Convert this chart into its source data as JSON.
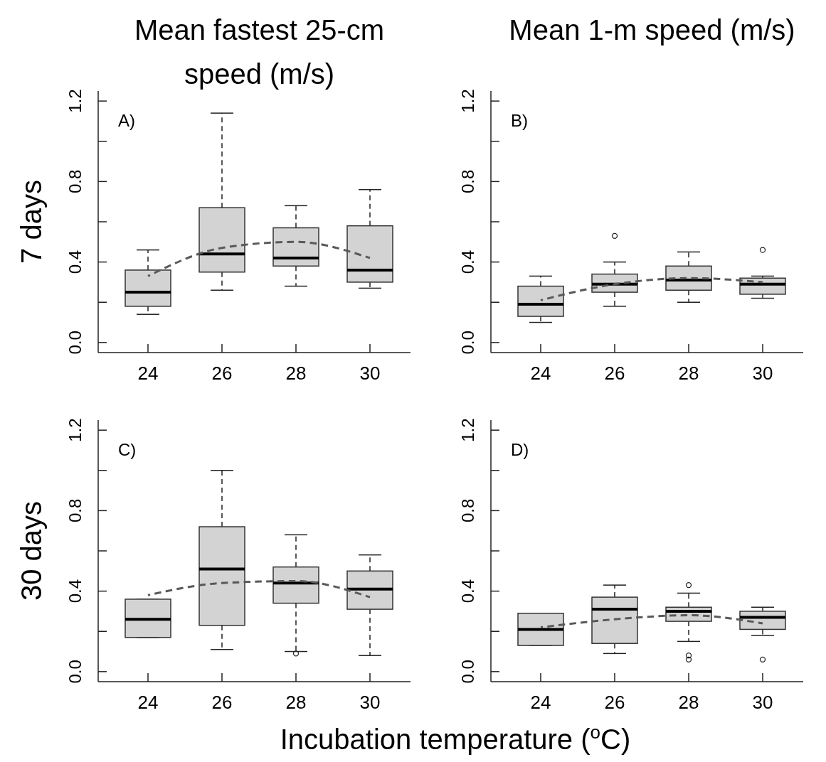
{
  "chart_data": [
    {
      "type": "box",
      "title": "Mean fastest 25-cm speed (m/s)",
      "ylabel": "7 days",
      "annotations": [
        "A)"
      ],
      "categories": [
        "24",
        "26",
        "28",
        "30"
      ],
      "ylim": [
        -0.05,
        1.25
      ],
      "yticks": [
        {
          "value": 0,
          "label": "0.0"
        },
        {
          "value": 0.2,
          "label": null
        },
        {
          "value": 0.4,
          "label": "0.4"
        },
        {
          "value": 0.6,
          "label": null
        },
        {
          "value": 0.8,
          "label": "0.8"
        },
        {
          "value": 1.0,
          "label": null
        },
        {
          "value": 1.2,
          "label": "1.2"
        }
      ],
      "series": [
        {
          "color": "#d3d3d3",
          "boxes": [
            {
              "low": 0.14,
              "q1": 0.18,
              "median": 0.25,
              "q3": 0.36,
              "high": 0.46
            },
            {
              "low": 0.26,
              "q1": 0.35,
              "median": 0.44,
              "q3": 0.67,
              "high": 1.14
            },
            {
              "low": 0.28,
              "q1": 0.38,
              "median": 0.42,
              "q3": 0.57,
              "high": 0.68
            },
            {
              "low": 0.27,
              "q1": 0.3,
              "median": 0.36,
              "q3": 0.58,
              "high": 0.76
            }
          ]
        },
        {
          "type": "line",
          "color": "#595959",
          "line_style": "dashed",
          "values": [
            0.33,
            0.47,
            0.5,
            0.42
          ]
        }
      ]
    },
    {
      "type": "box",
      "title": "Mean 1-m speed (m/s)",
      "annotations": [
        "B)"
      ],
      "categories": [
        "24",
        "26",
        "28",
        "30"
      ],
      "ylim": [
        -0.05,
        1.25
      ],
      "yticks": [
        {
          "value": 0,
          "label": "0.0"
        },
        {
          "value": 0.2,
          "label": null
        },
        {
          "value": 0.4,
          "label": "0.4"
        },
        {
          "value": 0.6,
          "label": null
        },
        {
          "value": 0.8,
          "label": "0.8"
        },
        {
          "value": 1.0,
          "label": null
        },
        {
          "value": 1.2,
          "label": "1.2"
        }
      ],
      "series": [
        {
          "color": "#d3d3d3",
          "boxes": [
            {
              "low": 0.1,
              "q1": 0.13,
              "median": 0.19,
              "q3": 0.28,
              "high": 0.33
            },
            {
              "low": 0.18,
              "q1": 0.25,
              "median": 0.29,
              "q3": 0.34,
              "high": 0.4,
              "outliers": [
                0.53
              ]
            },
            {
              "low": 0.2,
              "q1": 0.26,
              "median": 0.31,
              "q3": 0.38,
              "high": 0.45
            },
            {
              "low": 0.22,
              "q1": 0.24,
              "median": 0.29,
              "q3": 0.32,
              "high": 0.33,
              "outliers": [
                0.46
              ]
            }
          ]
        },
        {
          "type": "line",
          "color": "#595959",
          "line_style": "dashed",
          "values": [
            0.21,
            0.29,
            0.32,
            0.3
          ]
        }
      ]
    },
    {
      "type": "box",
      "ylabel": "30 days",
      "xlabel": "Incubation temperature ($^{o}$C)",
      "annotations": [
        "C)"
      ],
      "categories": [
        "24",
        "26",
        "28",
        "30"
      ],
      "ylim": [
        -0.05,
        1.25
      ],
      "yticks": [
        {
          "value": 0,
          "label": "0.0"
        },
        {
          "value": 0.2,
          "label": null
        },
        {
          "value": 0.4,
          "label": "0.4"
        },
        {
          "value": 0.6,
          "label": null
        },
        {
          "value": 0.8,
          "label": "0.8"
        },
        {
          "value": 1.0,
          "label": null
        },
        {
          "value": 1.2,
          "label": "1.2"
        }
      ],
      "series": [
        {
          "color": "#d3d3d3",
          "boxes": [
            {
              "low": 0.17,
              "q1": 0.17,
              "median": 0.26,
              "q3": 0.36,
              "high": 0.36
            },
            {
              "low": 0.11,
              "q1": 0.23,
              "median": 0.51,
              "q3": 0.72,
              "high": 1.0
            },
            {
              "low": 0.1,
              "q1": 0.34,
              "median": 0.44,
              "q3": 0.52,
              "high": 0.68,
              "outliers": [
                0.09
              ]
            },
            {
              "low": 0.08,
              "q1": 0.31,
              "median": 0.41,
              "q3": 0.5,
              "high": 0.58
            }
          ]
        },
        {
          "type": "line",
          "color": "#595959",
          "line_style": "dashed",
          "values": [
            0.38,
            0.44,
            0.45,
            0.37
          ]
        }
      ]
    },
    {
      "type": "box",
      "annotations": [
        "D)"
      ],
      "categories": [
        "24",
        "26",
        "28",
        "30"
      ],
      "ylim": [
        -0.05,
        1.25
      ],
      "yticks": [
        {
          "value": 0,
          "label": "0.0"
        },
        {
          "value": 0.2,
          "label": null
        },
        {
          "value": 0.4,
          "label": "0.4"
        },
        {
          "value": 0.6,
          "label": null
        },
        {
          "value": 0.8,
          "label": "0.8"
        },
        {
          "value": 1.0,
          "label": null
        },
        {
          "value": 1.2,
          "label": "1.2"
        }
      ],
      "series": [
        {
          "color": "#d3d3d3",
          "boxes": [
            {
              "low": 0.13,
              "q1": 0.13,
              "median": 0.21,
              "q3": 0.29,
              "high": 0.29
            },
            {
              "low": 0.09,
              "q1": 0.14,
              "median": 0.31,
              "q3": 0.37,
              "high": 0.43
            },
            {
              "low": 0.15,
              "q1": 0.25,
              "median": 0.3,
              "q3": 0.32,
              "high": 0.39,
              "outliers": [
                0.43,
                0.08,
                0.06
              ]
            },
            {
              "low": 0.18,
              "q1": 0.21,
              "median": 0.27,
              "q3": 0.3,
              "high": 0.32,
              "outliers": [
                0.06
              ]
            }
          ]
        },
        {
          "type": "line",
          "color": "#595959",
          "line_style": "dashed",
          "values": [
            0.22,
            0.26,
            0.28,
            0.24
          ]
        }
      ]
    }
  ]
}
